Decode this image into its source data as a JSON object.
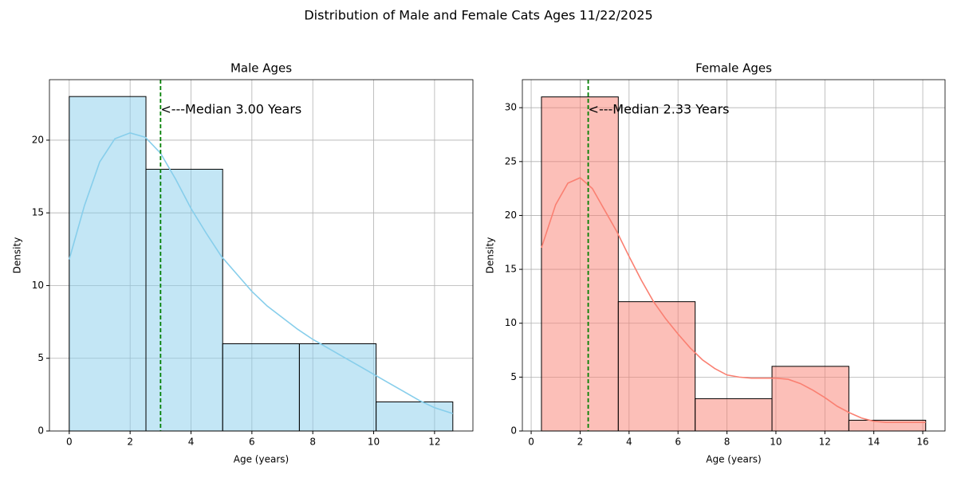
{
  "title": "Distribution of Male and Female Cats Ages 11/22/2025",
  "chart_data": [
    {
      "type": "histogram",
      "title": "Male Ages",
      "xlabel": "Age (years)",
      "ylabel": "Density",
      "bins": [
        0,
        2.52,
        5.04,
        7.56,
        10.08,
        12.6
      ],
      "values": [
        23,
        18,
        6,
        6,
        2
      ],
      "color": "#87ceeb",
      "kde": {
        "x": [
          0,
          0.5,
          1,
          1.5,
          2,
          2.5,
          3,
          3.5,
          4,
          4.5,
          5,
          5.5,
          6,
          6.5,
          7,
          7.5,
          8,
          8.5,
          9,
          9.5,
          10,
          10.5,
          11,
          11.5,
          12,
          12.6
        ],
        "values": [
          11.8,
          15.5,
          18.5,
          20.1,
          20.5,
          20.2,
          19.1,
          17.3,
          15.3,
          13.6,
          12.0,
          10.8,
          9.6,
          8.6,
          7.8,
          7.0,
          6.3,
          5.7,
          5.1,
          4.5,
          3.9,
          3.3,
          2.7,
          2.1,
          1.6,
          1.2
        ],
        "color": "#87ceeb"
      },
      "median": {
        "value": 3.0,
        "label": "<---Median 3.00 Years",
        "color": "#008000"
      },
      "xlim": [
        -0.65,
        13.26
      ],
      "ylim": [
        0,
        24.16
      ],
      "xticks": [
        0,
        2,
        4,
        6,
        8,
        10,
        12
      ],
      "yticks": [
        0,
        5,
        10,
        15,
        20
      ],
      "grid": true
    },
    {
      "type": "histogram",
      "title": "Female Ages",
      "xlabel": "Age (years)",
      "ylabel": "Density",
      "bins": [
        0.42,
        3.56,
        6.7,
        9.84,
        12.98,
        16.12
      ],
      "values": [
        31,
        12,
        3,
        6,
        1
      ],
      "color": "#fa8072",
      "kde": {
        "x": [
          0.42,
          1,
          1.5,
          2,
          2.5,
          3,
          3.5,
          4,
          4.5,
          5,
          5.5,
          6,
          6.5,
          7,
          7.5,
          8,
          8.5,
          9,
          9.5,
          10,
          10.5,
          11,
          11.5,
          12,
          12.5,
          13,
          13.5,
          14,
          14.5,
          15,
          16.12
        ],
        "values": [
          17,
          21,
          23,
          23.5,
          22.5,
          20.5,
          18.5,
          16.2,
          14,
          12,
          10.4,
          9,
          7.7,
          6.6,
          5.8,
          5.2,
          5.0,
          4.9,
          4.9,
          4.9,
          4.8,
          4.4,
          3.8,
          3.1,
          2.3,
          1.7,
          1.2,
          0.9,
          0.8,
          0.8,
          0.8
        ],
        "color": "#fa8072"
      },
      "median": {
        "value": 2.33,
        "label": "<---Median 2.33 Years",
        "color": "#008000"
      },
      "xlim": [
        -0.36,
        16.91
      ],
      "ylim": [
        0,
        32.6
      ],
      "xticks": [
        0,
        2,
        4,
        6,
        8,
        10,
        12,
        14,
        16
      ],
      "yticks": [
        0,
        5,
        10,
        15,
        20,
        25,
        30
      ],
      "grid": true
    }
  ]
}
